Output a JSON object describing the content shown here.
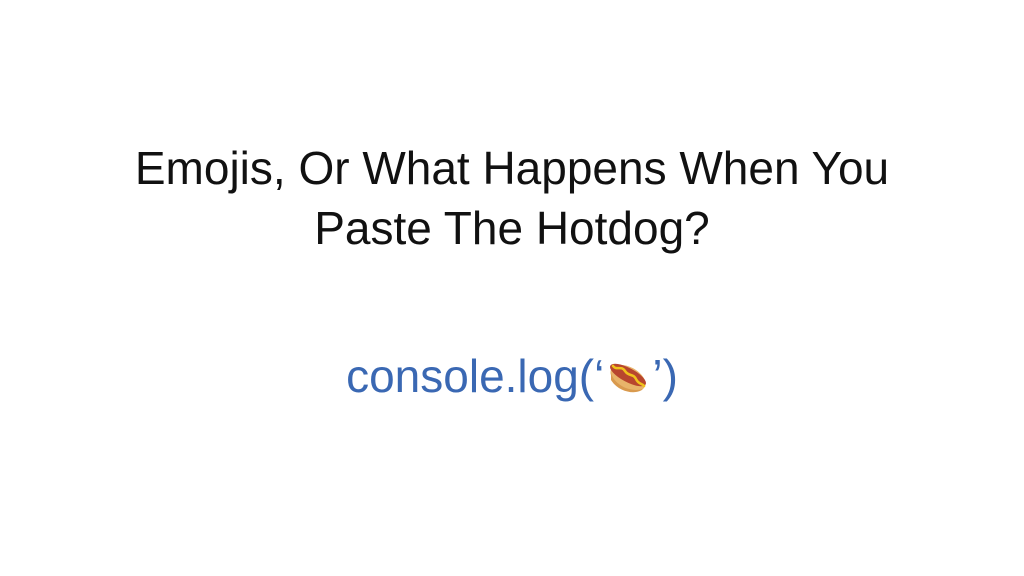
{
  "slide": {
    "title_lines": [
      "Emojis, Or What Happens When You",
      "Paste The Hotdog?"
    ],
    "code": {
      "prefix": "console.log(‘",
      "suffix": "’)",
      "emoji_icon": "hotdog-icon"
    }
  },
  "colors": {
    "background": "#ffffff",
    "title_text": "#111111",
    "code_text": "#3a68b3"
  }
}
